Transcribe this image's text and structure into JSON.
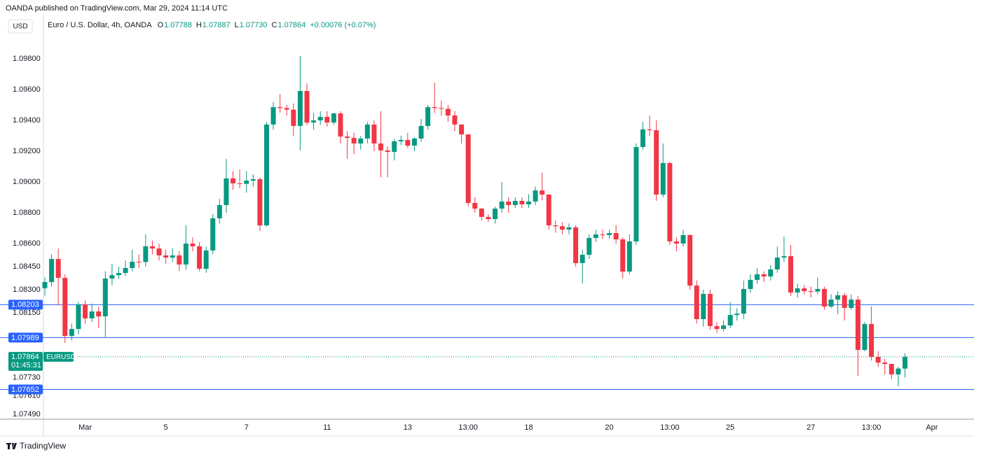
{
  "header": "OANDA published on TradingView.com, Mar 29, 2024 11:14 UTC",
  "footer": "TradingView",
  "chart_data": {
    "type": "candlestick",
    "currency": "USD",
    "title": "Euro / U.S. Dollar, 4h, OANDA",
    "ohlc_letters": [
      "O",
      "H",
      "L",
      "C"
    ],
    "ohlc_labels": [
      "1.07788",
      "1.07887",
      "1.07730",
      "1.07864"
    ],
    "change_label": "+0.00076 (+0.07%)",
    "symbol": "EURUSD",
    "countdown": "01:45:31",
    "last_price": 1.07864,
    "levels": [
      1.08203,
      1.07989,
      1.07652
    ],
    "up_color": "#089981",
    "down_color": "#f23645",
    "level_color": "#2962ff",
    "grid": false,
    "ylim": [
      1.07459,
      1.10082
    ],
    "yticks": [
      {
        "value": 1.098,
        "label": "1.09800"
      },
      {
        "value": 1.096,
        "label": "1.09600"
      },
      {
        "value": 1.094,
        "label": "1.09400"
      },
      {
        "value": 1.092,
        "label": "1.09200"
      },
      {
        "value": 1.09,
        "label": "1.09000"
      },
      {
        "value": 1.088,
        "label": "1.08800"
      },
      {
        "value": 1.086,
        "label": "1.08600"
      },
      {
        "value": 1.0845,
        "label": "1.08450"
      },
      {
        "value": 1.083,
        "label": "1.08300"
      },
      {
        "value": 1.0815,
        "label": "1.08150"
      },
      {
        "value": 1.0773,
        "label": "1.07730"
      },
      {
        "value": 1.0761,
        "label": "1.07610"
      },
      {
        "value": 1.0749,
        "label": "1.07490"
      }
    ],
    "categories": [
      null,
      null,
      null,
      null,
      null,
      null,
      "Mar",
      null,
      null,
      null,
      null,
      null,
      null,
      null,
      null,
      null,
      null,
      null,
      "5",
      null,
      null,
      null,
      null,
      null,
      null,
      null,
      null,
      null,
      null,
      null,
      "7",
      null,
      null,
      null,
      null,
      null,
      null,
      null,
      null,
      null,
      null,
      null,
      "11",
      null,
      null,
      null,
      null,
      null,
      null,
      null,
      null,
      null,
      null,
      null,
      "13",
      null,
      null,
      null,
      null,
      null,
      null,
      null,
      null,
      "13:00",
      null,
      null,
      null,
      null,
      null,
      null,
      null,
      null,
      "18",
      null,
      null,
      null,
      null,
      null,
      null,
      null,
      null,
      null,
      null,
      null,
      "20",
      null,
      null,
      null,
      null,
      null,
      null,
      null,
      null,
      "13:00",
      null,
      null,
      null,
      null,
      null,
      null,
      null,
      null,
      "25",
      null,
      null,
      null,
      null,
      null,
      null,
      null,
      null,
      null,
      null,
      null,
      "27",
      null,
      null,
      null,
      null,
      null,
      null,
      null,
      null,
      "13:00",
      null,
      null,
      null,
      null,
      null,
      null,
      null,
      null,
      "Apr"
    ],
    "open": [
      1.0831,
      1.0835,
      1.085,
      1.08377,
      1.08,
      1.08045,
      1.08205,
      1.08114,
      1.08159,
      1.08127,
      1.08373,
      1.08395,
      1.08409,
      1.08441,
      1.08482,
      1.0848,
      1.08582,
      1.08568,
      1.08523,
      1.08509,
      1.08523,
      1.08464,
      1.086,
      1.08582,
      1.08436,
      1.08555,
      1.08764,
      1.0885,
      1.09023,
      1.08991,
      1.08988,
      1.09009,
      1.09018,
      1.08718,
      1.09373,
      1.09486,
      1.0948,
      1.0947,
      1.09364,
      1.09591,
      1.09386,
      1.094,
      1.09423,
      1.09386,
      1.09445,
      1.09295,
      1.09286,
      1.0925,
      1.09282,
      1.09373,
      1.0925,
      1.09205,
      1.09195,
      1.09264,
      1.09273,
      1.09236,
      1.09282,
      1.09364,
      1.09486,
      1.0948,
      1.09475,
      1.09432,
      1.09373,
      1.09309,
      1.08864,
      1.08827,
      1.08773,
      1.08759,
      1.08827,
      1.08873,
      1.0885,
      1.08877,
      1.08855,
      1.08873,
      1.08945,
      1.08918,
      1.08718,
      1.08712,
      1.08691,
      1.08705,
      1.08473,
      1.08527,
      1.08636,
      1.08659,
      1.08655,
      1.08668,
      1.08627,
      1.08418,
      1.08614,
      1.09227,
      1.09341,
      1.09336,
      1.08918,
      1.09123,
      1.08614,
      1.086,
      1.08655,
      1.08327,
      1.08109,
      1.08273,
      1.08064,
      1.08045,
      1.08068,
      1.08136,
      1.08145,
      1.08305,
      1.08364,
      1.084,
      1.08386,
      1.08432,
      1.08509,
      1.08518,
      1.08282,
      1.08309,
      1.08291,
      1.08288,
      1.08305,
      1.08191,
      1.08236,
      1.08264,
      1.08182,
      1.08236,
      1.07909,
      1.08077,
      1.07864,
      1.07827,
      1.07818,
      1.0775,
      1.07788,
      null,
      null,
      null,
      null
    ],
    "high": [
      1.0838,
      1.0853,
      1.08568,
      1.084,
      1.0808,
      1.0822,
      1.0823,
      1.0821,
      1.0819,
      1.0842,
      1.0847,
      1.0845,
      1.0849,
      1.0856,
      1.0853,
      1.0866,
      1.0862,
      1.086,
      1.0856,
      1.0857,
      1.0855,
      1.0872,
      1.0864,
      1.0861,
      1.0858,
      1.0879,
      1.0889,
      1.0915,
      1.0907,
      1.0908,
      1.0907,
      1.0905,
      1.0903,
      1.0939,
      1.0952,
      1.0957,
      1.095,
      1.0951,
      1.09818,
      1.0964,
      1.0945,
      1.0946,
      1.0946,
      1.0945,
      1.0946,
      1.0933,
      1.0932,
      1.093,
      1.0939,
      1.094,
      1.0946,
      1.0923,
      1.0928,
      1.093,
      1.0932,
      1.0929,
      1.0941,
      1.095,
      1.09645,
      1.0953,
      1.095,
      1.0946,
      1.0937,
      1.0931,
      1.089,
      1.0883,
      1.0879,
      1.0884,
      1.09,
      1.089,
      1.089,
      1.089,
      1.0892,
      1.0897,
      1.0906,
      1.0892,
      1.0875,
      1.0874,
      1.0873,
      1.0872,
      1.0856,
      1.0866,
      1.0869,
      1.0869,
      1.0869,
      1.0872,
      1.0864,
      1.0866,
      1.0925,
      1.0939,
      1.09432,
      1.094,
      1.0925,
      1.0913,
      1.0864,
      1.0869,
      1.0866,
      1.0836,
      1.083,
      1.083,
      1.0809,
      1.081,
      1.0822,
      1.0818,
      1.0836,
      1.084,
      1.0844,
      1.0842,
      1.0846,
      1.0858,
      1.08645,
      1.0859,
      1.0834,
      1.0833,
      1.0832,
      1.0838,
      1.0832,
      1.0827,
      1.0829,
      1.0828,
      1.0827,
      1.0826,
      1.0809,
      1.08191,
      1.079,
      1.0785,
      1.0782,
      1.078,
      1.07887,
      null,
      null,
      null,
      null
    ],
    "low": [
      1.0826,
      1.0832,
      1.082,
      1.07955,
      1.0797,
      1.0801,
      1.0808,
      1.0809,
      1.0805,
      1.07991,
      1.0833,
      1.0837,
      1.0839,
      1.0842,
      1.0844,
      1.0845,
      1.0853,
      1.0849,
      1.0847,
      1.0848,
      1.0842,
      1.0843,
      1.0855,
      1.0842,
      1.0841,
      1.0853,
      1.0873,
      1.088,
      1.0895,
      1.0896,
      1.0893,
      1.0897,
      1.08682,
      1.0871,
      1.0934,
      1.0945,
      1.0943,
      1.093,
      1.09205,
      1.0937,
      1.0934,
      1.0937,
      1.0936,
      1.0937,
      1.0925,
      1.0915,
      1.0918,
      1.0921,
      1.0925,
      1.092,
      1.0903,
      1.0903,
      1.0914,
      1.0924,
      1.0922,
      1.092,
      1.0926,
      1.0934,
      1.0945,
      1.0943,
      1.0939,
      1.0933,
      1.0925,
      1.0884,
      1.088,
      1.0875,
      1.0874,
      1.0873,
      1.088,
      1.088,
      1.0883,
      1.0883,
      1.0883,
      1.0885,
      1.0888,
      1.0869,
      1.0867,
      1.0866,
      1.0866,
      1.0845,
      1.08341,
      1.085,
      1.0861,
      1.0863,
      1.0863,
      1.086,
      1.08373,
      1.084,
      1.0859,
      1.0921,
      1.093,
      1.08877,
      1.089,
      1.0859,
      1.0855,
      1.0858,
      1.083,
      1.0808,
      1.0806,
      1.0804,
      1.0802,
      1.0803,
      1.0805,
      1.081,
      1.0811,
      1.0828,
      1.0834,
      1.0835,
      1.0836,
      1.0841,
      1.0848,
      1.0826,
      1.0825,
      1.0827,
      1.0825,
      1.0827,
      1.0817,
      1.0818,
      1.0814,
      1.081,
      1.0817,
      1.07741,
      1.079,
      1.0784,
      1.078,
      1.0775,
      1.0772,
      1.07673,
      1.0773,
      null,
      null,
      null,
      null
    ],
    "close": [
      1.0835,
      1.085,
      1.08377,
      1.08,
      1.08045,
      1.08205,
      1.08114,
      1.08159,
      1.08127,
      1.08373,
      1.08395,
      1.08409,
      1.08441,
      1.08482,
      1.0848,
      1.08582,
      1.08568,
      1.08523,
      1.08509,
      1.08523,
      1.08464,
      1.086,
      1.08582,
      1.08436,
      1.08555,
      1.08764,
      1.0885,
      1.09023,
      1.08991,
      1.08988,
      1.09009,
      1.09018,
      1.08718,
      1.09373,
      1.09486,
      1.0948,
      1.0947,
      1.09364,
      1.09591,
      1.09386,
      1.094,
      1.09423,
      1.09386,
      1.09445,
      1.09295,
      1.09286,
      1.0925,
      1.09282,
      1.09373,
      1.0925,
      1.09205,
      1.09195,
      1.09264,
      1.09273,
      1.09236,
      1.09282,
      1.09364,
      1.09486,
      1.0948,
      1.09475,
      1.09432,
      1.09373,
      1.09309,
      1.08864,
      1.08827,
      1.08773,
      1.08759,
      1.08827,
      1.08873,
      1.0885,
      1.08877,
      1.08855,
      1.08873,
      1.08945,
      1.08918,
      1.08718,
      1.08712,
      1.08691,
      1.08705,
      1.08473,
      1.08527,
      1.08636,
      1.08659,
      1.08655,
      1.08668,
      1.08627,
      1.08418,
      1.08614,
      1.09227,
      1.09341,
      1.09336,
      1.08918,
      1.09123,
      1.08614,
      1.086,
      1.08655,
      1.08327,
      1.08109,
      1.08273,
      1.08064,
      1.08045,
      1.08068,
      1.08136,
      1.08145,
      1.08305,
      1.08364,
      1.084,
      1.08386,
      1.08432,
      1.08509,
      1.08518,
      1.08282,
      1.08309,
      1.08291,
      1.08288,
      1.08305,
      1.08191,
      1.08236,
      1.08264,
      1.08182,
      1.08236,
      1.07909,
      1.08077,
      1.07864,
      1.07827,
      1.07818,
      1.0775,
      1.07788,
      1.07864,
      null,
      null,
      null,
      null
    ]
  }
}
